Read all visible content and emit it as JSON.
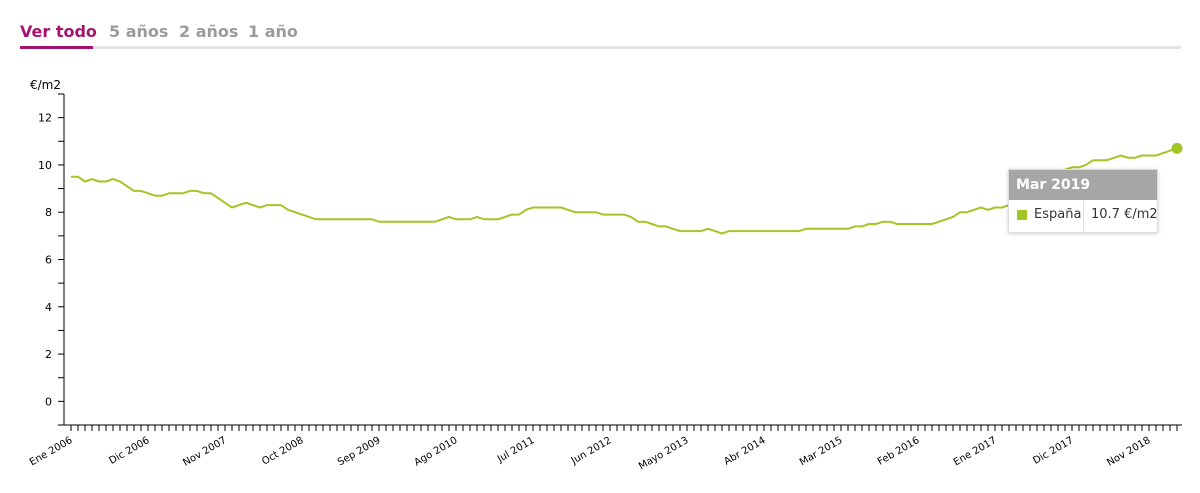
{
  "tabs": [
    {
      "label": "Ver todo",
      "active": true
    },
    {
      "label": "5 años",
      "active": false
    },
    {
      "label": "2 años",
      "active": false
    },
    {
      "label": "1 año",
      "active": false
    }
  ],
  "colors": {
    "accent": "#a4136f",
    "tab_inactive": "#9b9b9b",
    "series": "#a3c526",
    "tooltip_header": "#a6a6a6"
  },
  "tooltip": {
    "title": "Mar 2019",
    "series_name": "España",
    "value_text": "10.7 €/m2"
  },
  "chart_data": {
    "type": "line",
    "ylabel": "€/m2",
    "ylim": [
      -1,
      13
    ],
    "yticks": [
      0,
      2,
      4,
      6,
      8,
      10,
      12
    ],
    "x_start": "2006-01",
    "x_end": "2019-03",
    "x_tick_labels": [
      "Ene 2006",
      "Dic 2006",
      "Nov 2007",
      "Oct 2008",
      "Sep 2009",
      "Ago 2010",
      "Jul 2011",
      "Jun 2012",
      "Mayo 2013",
      "Abr 2014",
      "Mar 2015",
      "Feb 2016",
      "Ene 2017",
      "Dic 2017",
      "Nov 2018"
    ],
    "grid": false,
    "legend": "none",
    "series": [
      {
        "name": "España",
        "x": [
          "2006-01",
          "2006-02",
          "2006-03",
          "2006-04",
          "2006-05",
          "2006-06",
          "2006-07",
          "2006-08",
          "2006-09",
          "2006-10",
          "2006-11",
          "2006-12",
          "2007-01",
          "2007-02",
          "2007-03",
          "2007-04",
          "2007-05",
          "2007-06",
          "2007-07",
          "2007-08",
          "2007-09",
          "2007-10",
          "2007-11",
          "2007-12",
          "2008-01",
          "2008-02",
          "2008-03",
          "2008-04",
          "2008-05",
          "2008-06",
          "2008-07",
          "2008-08",
          "2008-09",
          "2008-10",
          "2008-11",
          "2008-12",
          "2009-01",
          "2009-02",
          "2009-03",
          "2009-04",
          "2009-05",
          "2009-06",
          "2009-07",
          "2009-08",
          "2009-09",
          "2009-10",
          "2009-11",
          "2009-12",
          "2010-01",
          "2010-02",
          "2010-03",
          "2010-04",
          "2010-05",
          "2010-06",
          "2010-07",
          "2010-08",
          "2010-09",
          "2010-10",
          "2010-11",
          "2010-12",
          "2011-01",
          "2011-02",
          "2011-03",
          "2011-04",
          "2011-05",
          "2011-06",
          "2011-07",
          "2011-08",
          "2011-09",
          "2011-10",
          "2011-11",
          "2011-12",
          "2012-01",
          "2012-02",
          "2012-03",
          "2012-04",
          "2012-05",
          "2012-06",
          "2012-07",
          "2012-08",
          "2012-09",
          "2012-10",
          "2012-11",
          "2012-12",
          "2013-01",
          "2013-02",
          "2013-03",
          "2013-04",
          "2013-05",
          "2013-06",
          "2013-07",
          "2013-08",
          "2013-09",
          "2013-10",
          "2013-11",
          "2013-12",
          "2014-01",
          "2014-02",
          "2014-03",
          "2014-04",
          "2014-05",
          "2014-06",
          "2014-07",
          "2014-08",
          "2014-09",
          "2014-10",
          "2014-11",
          "2014-12",
          "2015-01",
          "2015-02",
          "2015-03",
          "2015-04",
          "2015-05",
          "2015-06",
          "2015-07",
          "2015-08",
          "2015-09",
          "2015-10",
          "2015-11",
          "2015-12",
          "2016-01",
          "2016-02",
          "2016-03",
          "2016-04",
          "2016-05",
          "2016-06",
          "2016-07",
          "2016-08",
          "2016-09",
          "2016-10",
          "2016-11",
          "2016-12",
          "2017-01",
          "2017-02",
          "2017-03",
          "2017-04",
          "2017-05",
          "2017-06",
          "2017-07",
          "2017-08",
          "2017-09",
          "2017-10",
          "2017-11",
          "2017-12",
          "2018-01",
          "2018-02",
          "2018-03",
          "2018-04",
          "2018-05",
          "2018-06",
          "2018-07",
          "2018-08",
          "2018-09",
          "2018-10",
          "2018-11",
          "2018-12",
          "2019-01",
          "2019-02",
          "2019-03"
        ],
        "values": [
          9.5,
          9.5,
          9.3,
          9.4,
          9.3,
          9.3,
          9.4,
          9.3,
          9.1,
          8.9,
          8.9,
          8.8,
          8.7,
          8.7,
          8.8,
          8.8,
          8.8,
          8.9,
          8.9,
          8.8,
          8.8,
          8.6,
          8.4,
          8.2,
          8.3,
          8.4,
          8.3,
          8.2,
          8.3,
          8.3,
          8.3,
          8.1,
          8.0,
          7.9,
          7.8,
          7.7,
          7.7,
          7.7,
          7.7,
          7.7,
          7.7,
          7.7,
          7.7,
          7.7,
          7.6,
          7.6,
          7.6,
          7.6,
          7.6,
          7.6,
          7.6,
          7.6,
          7.6,
          7.7,
          7.8,
          7.7,
          7.7,
          7.7,
          7.8,
          7.7,
          7.7,
          7.7,
          7.8,
          7.9,
          7.9,
          8.1,
          8.2,
          8.2,
          8.2,
          8.2,
          8.2,
          8.1,
          8.0,
          8.0,
          8.0,
          8.0,
          7.9,
          7.9,
          7.9,
          7.9,
          7.8,
          7.6,
          7.6,
          7.5,
          7.4,
          7.4,
          7.3,
          7.2,
          7.2,
          7.2,
          7.2,
          7.3,
          7.2,
          7.1,
          7.2,
          7.2,
          7.2,
          7.2,
          7.2,
          7.2,
          7.2,
          7.2,
          7.2,
          7.2,
          7.2,
          7.3,
          7.3,
          7.3,
          7.3,
          7.3,
          7.3,
          7.3,
          7.4,
          7.4,
          7.5,
          7.5,
          7.6,
          7.6,
          7.5,
          7.5,
          7.5,
          7.5,
          7.5,
          7.5,
          7.6,
          7.7,
          7.8,
          8.0,
          8.0,
          8.1,
          8.2,
          8.1,
          8.2,
          8.2,
          8.3,
          8.4,
          8.7,
          8.9,
          9.1,
          9.3,
          9.4,
          9.6,
          9.8,
          9.9,
          9.9,
          10.0,
          10.2,
          10.2,
          10.2,
          10.3,
          10.4,
          10.3,
          10.3,
          10.4,
          10.4,
          10.4,
          10.5,
          10.6,
          10.7
        ]
      }
    ]
  }
}
